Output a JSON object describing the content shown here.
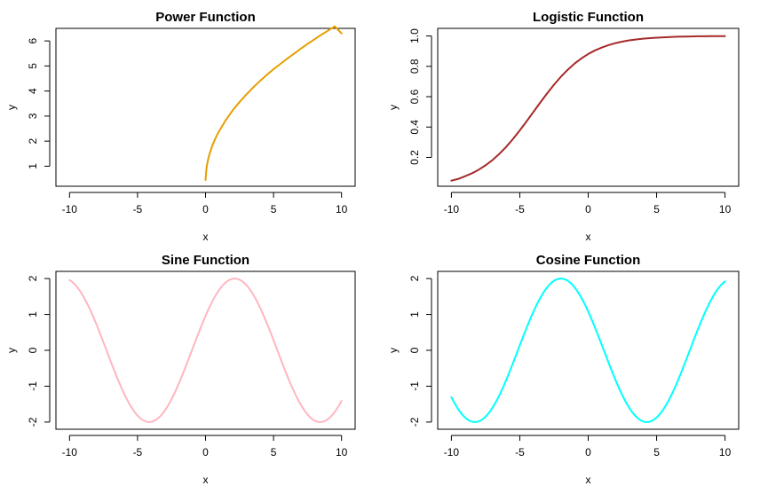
{
  "chart_data": [
    {
      "type": "line",
      "title": "Power Function",
      "xlabel": "x",
      "ylabel": "y",
      "xlim": [
        -11,
        11
      ],
      "ylim": [
        0.2,
        6.5
      ],
      "xticks": [
        -10,
        -5,
        0,
        5,
        10
      ],
      "xtick_labels": [
        "-10",
        "-5",
        "0",
        "5",
        "10"
      ],
      "yticks": [
        1,
        2,
        3,
        4,
        5,
        6
      ],
      "ytick_labels": [
        "1",
        "2",
        "3",
        "4",
        "5",
        "6"
      ],
      "grid": false,
      "series": [
        {
          "color": "#E69F00",
          "x": [
            0,
            0.05,
            0.1,
            0.2,
            0.3,
            0.5,
            0.75,
            1,
            1.5,
            2,
            2.5,
            3,
            3.5,
            4,
            4.5,
            5,
            5.5,
            6,
            6.5,
            7,
            7.5,
            8,
            8.5,
            9,
            9.5,
            10
          ],
          "y": [
            0.45,
            0.8,
            1.03,
            1.3,
            1.5,
            1.82,
            2.14,
            2.4,
            2.85,
            3.23,
            3.56,
            3.86,
            4.14,
            4.4,
            4.64,
            4.87,
            5.08,
            5.29,
            5.49,
            5.69,
            5.88,
            6.06,
            6.24,
            6.41,
            6.58,
            6.3
          ]
        }
      ]
    },
    {
      "type": "line",
      "title": "Logistic Function",
      "xlabel": "x",
      "ylabel": "y",
      "xlim": [
        -11,
        11
      ],
      "ylim": [
        0.01,
        1.05
      ],
      "xticks": [
        -10,
        -5,
        0,
        5,
        10
      ],
      "xtick_labels": [
        "-10",
        "-5",
        "0",
        "5",
        "10"
      ],
      "yticks": [
        0.2,
        0.4,
        0.6,
        0.8,
        1.0
      ],
      "ytick_labels": [
        "0.2",
        "0.4",
        "0.6",
        "0.8",
        "1.0"
      ],
      "grid": false,
      "series": [
        {
          "color": "#A52A2A",
          "x": [
            -10,
            -9.5,
            -9,
            -8.5,
            -8,
            -7.5,
            -7,
            -6.5,
            -6,
            -5.5,
            -5,
            -4.5,
            -4,
            -3.5,
            -3,
            -2.5,
            -2,
            -1.5,
            -1,
            -0.5,
            0,
            0.5,
            1,
            1.5,
            2,
            2.5,
            3,
            3.5,
            4,
            4.5,
            5,
            5.5,
            6,
            6.5,
            7,
            7.5,
            8,
            8.5,
            9,
            9.5,
            10
          ],
          "y": [
            0.047,
            0.058,
            0.076,
            0.095,
            0.119,
            0.148,
            0.182,
            0.223,
            0.269,
            0.321,
            0.378,
            0.438,
            0.5,
            0.562,
            0.622,
            0.679,
            0.731,
            0.777,
            0.818,
            0.852,
            0.881,
            0.905,
            0.924,
            0.94,
            0.953,
            0.963,
            0.971,
            0.977,
            0.982,
            0.986,
            0.989,
            0.991,
            0.993,
            0.995,
            0.996,
            0.997,
            0.998,
            0.998,
            0.999,
            0.999,
            0.999
          ]
        }
      ]
    },
    {
      "type": "line",
      "title": "Sine Function",
      "xlabel": "x",
      "ylabel": "y",
      "xlim": [
        -11,
        11
      ],
      "ylim": [
        -2.2,
        2.2
      ],
      "xticks": [
        -10,
        -5,
        0,
        5,
        10
      ],
      "xtick_labels": [
        "-10",
        "-5",
        "0",
        "5",
        "10"
      ],
      "yticks": [
        -2,
        -1,
        0,
        1,
        2
      ],
      "ytick_labels": [
        "-2",
        "-1",
        "0",
        "1",
        "2"
      ],
      "grid": false,
      "series": [
        {
          "color": "#FFB6C1",
          "formula": "2*sin(0.5*x + 0.5)",
          "x_range": [
            -10,
            10
          ]
        }
      ]
    },
    {
      "type": "line",
      "title": "Cosine Function",
      "xlabel": "x",
      "ylabel": "y",
      "xlim": [
        -11,
        11
      ],
      "ylim": [
        -2.2,
        2.2
      ],
      "xticks": [
        -10,
        -5,
        0,
        5,
        10
      ],
      "xtick_labels": [
        "-10",
        "-5",
        "0",
        "5",
        "10"
      ],
      "yticks": [
        -2,
        -1,
        0,
        1,
        2
      ],
      "ytick_labels": [
        "-2",
        "-1",
        "0",
        "1",
        "2"
      ],
      "grid": false,
      "series": [
        {
          "color": "#00FFFF",
          "formula": "2*cos(0.5*x + 1)",
          "x_range": [
            -10,
            10
          ]
        }
      ]
    }
  ]
}
